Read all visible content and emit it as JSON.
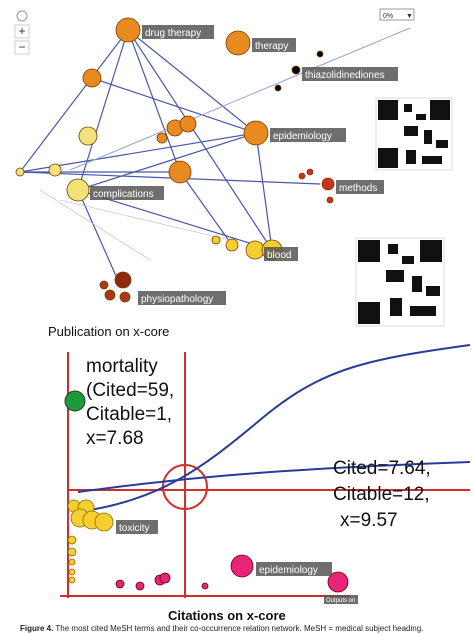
{
  "network": {
    "zoom_in": "+",
    "zoom_out": "−",
    "dropdown": "0%",
    "nodes": [
      {
        "label": "drug therapy"
      },
      {
        "label": "therapy"
      },
      {
        "label": "thiazolidinediones"
      },
      {
        "label": "epidemiology"
      },
      {
        "label": "methods"
      },
      {
        "label": "complications"
      },
      {
        "label": "blood"
      },
      {
        "label": "physiopathology"
      }
    ],
    "axis_label": "Publication on x-core"
  },
  "scatter": {
    "annotation_left": [
      "mortality",
      "(Cited=59,",
      "Citable=1,",
      "x=7.68"
    ],
    "annotation_right": [
      "Cited=7.64,",
      "Citable=12,",
      "x=9.57"
    ],
    "labels": [
      "toxicity",
      "epidemiology"
    ],
    "small_label": "Outputs on",
    "axis_label": "Citations on x-core"
  },
  "caption": {
    "number": "Figure 4.",
    "text": "The most cited MeSH terms and their co-occurrence relation network. MeSH = medical subject heading."
  }
}
